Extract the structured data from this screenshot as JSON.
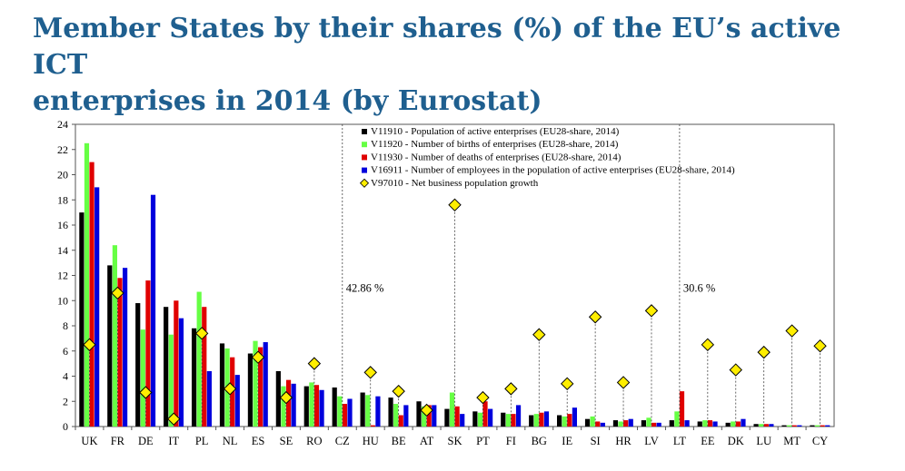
{
  "slide": {
    "title_line1": "Member States by their shares (%) of the EU’s active ICT",
    "title_line2": "enterprises in 2014 (by Eurostat)"
  },
  "chart_data": {
    "type": "bar",
    "title": "",
    "xlabel": "",
    "ylabel": "",
    "ylim": [
      0,
      24
    ],
    "yticks": [
      0,
      2,
      4,
      6,
      8,
      10,
      12,
      14,
      16,
      18,
      20,
      22,
      24
    ],
    "grid": false,
    "legend_position": "top-center",
    "categories": [
      "UK",
      "FR",
      "DE",
      "IT",
      "PL",
      "NL",
      "ES",
      "SE",
      "RO",
      "CZ",
      "HU",
      "BE",
      "AT",
      "SK",
      "PT",
      "FI",
      "BG",
      "IE",
      "SI",
      "HR",
      "LV",
      "LT",
      "EE",
      "DK",
      "LU",
      "MT",
      "CY"
    ],
    "series": [
      {
        "name": "V11910 - Population of active enterprises (EU28-share, 2014)",
        "color": "#000000",
        "values": [
          17.0,
          12.8,
          9.8,
          9.5,
          7.8,
          6.6,
          5.8,
          4.4,
          3.2,
          3.1,
          2.7,
          2.3,
          2.0,
          1.4,
          1.2,
          1.1,
          0.9,
          0.9,
          0.6,
          0.5,
          0.5,
          0.5,
          0.4,
          0.3,
          0.2,
          0.1,
          0.1
        ]
      },
      {
        "name": "V11920 - Number of births of enterprises (EU28-share, 2014)",
        "color": "#66ff44",
        "values": [
          22.5,
          14.4,
          7.7,
          7.3,
          10.7,
          6.2,
          6.8,
          3.2,
          3.5,
          2.4,
          2.5,
          1.8,
          1.6,
          2.7,
          1.1,
          1.0,
          1.0,
          0.8,
          0.8,
          0.4,
          0.7,
          1.2,
          0.5,
          0.4,
          0.2,
          0.1,
          0.1
        ]
      },
      {
        "name": "V11930 - Number of deaths of enterprises (EU28-share, 2014)",
        "color": "#e00000",
        "values": [
          21.0,
          11.8,
          11.6,
          10.0,
          9.5,
          5.5,
          6.3,
          3.7,
          3.3,
          1.8,
          0.1,
          0.9,
          1.7,
          1.6,
          2.0,
          1.0,
          1.1,
          1.0,
          0.4,
          0.5,
          0.3,
          2.8,
          0.5,
          0.4,
          0.2,
          0.1,
          0.1
        ]
      },
      {
        "name": "V16911 - Number of employees in the population of active enterprises (EU28-share, 2014)",
        "color": "#0000dd",
        "values": [
          19.0,
          12.6,
          18.4,
          8.6,
          4.4,
          4.1,
          6.7,
          3.4,
          2.9,
          2.2,
          2.4,
          1.7,
          1.7,
          1.0,
          1.4,
          1.7,
          1.2,
          1.5,
          0.3,
          0.6,
          0.3,
          0.5,
          0.4,
          0.6,
          0.2,
          0.1,
          0.1
        ]
      }
    ],
    "markers": {
      "name": "V97010 - Net business population growth",
      "color": "#ffee00",
      "values": [
        6.5,
        10.6,
        2.7,
        0.6,
        7.4,
        3.0,
        5.5,
        2.3,
        5.0,
        null,
        4.3,
        2.8,
        1.3,
        17.6,
        2.3,
        3.0,
        7.3,
        3.4,
        8.7,
        3.5,
        9.2,
        null,
        6.5,
        4.5,
        5.9,
        7.6,
        6.4
      ]
    },
    "annotations": [
      {
        "text": "42.86 %",
        "category": "CZ"
      },
      {
        "text": "30.6 %",
        "category": "LT"
      }
    ]
  }
}
